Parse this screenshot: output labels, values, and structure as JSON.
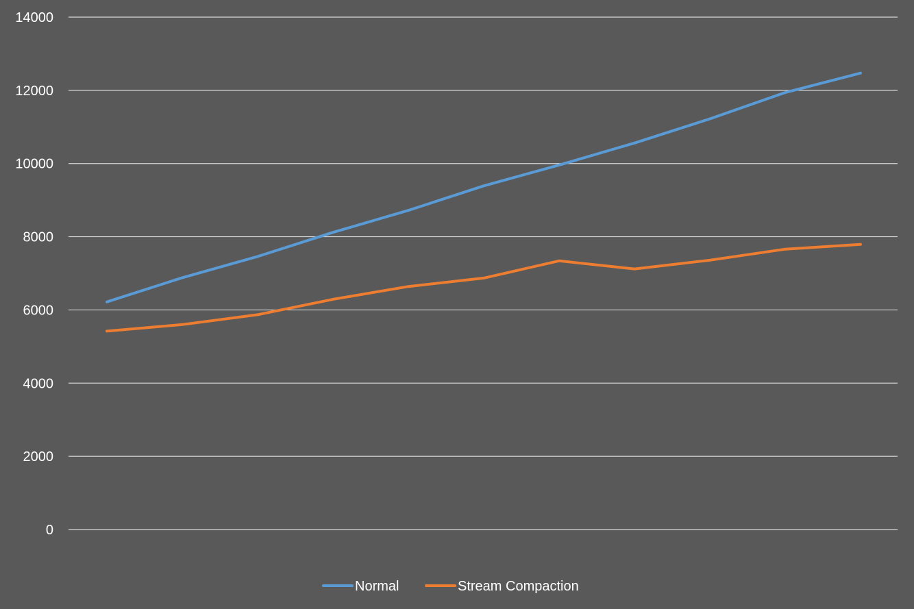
{
  "chart_data": {
    "type": "line",
    "title": "",
    "xlabel": "",
    "ylabel": "",
    "ylim": [
      0,
      14000
    ],
    "yticks": [
      0,
      2000,
      4000,
      6000,
      8000,
      10000,
      12000,
      14000
    ],
    "grid": true,
    "legend": "bottom-center",
    "x": [
      1,
      2,
      3,
      4,
      5,
      6,
      7,
      8,
      9,
      10,
      11
    ],
    "series": [
      {
        "name": "Normal",
        "color": "#5b9bd5",
        "values": [
          6220,
          6880,
          7460,
          8120,
          8720,
          9390,
          9960,
          10560,
          11220,
          11940,
          12470
        ]
      },
      {
        "name": "Stream Compaction",
        "color": "#ed7d31",
        "values": [
          5420,
          5600,
          5870,
          6290,
          6640,
          6870,
          7340,
          7120,
          7360,
          7660,
          7790
        ]
      }
    ]
  }
}
